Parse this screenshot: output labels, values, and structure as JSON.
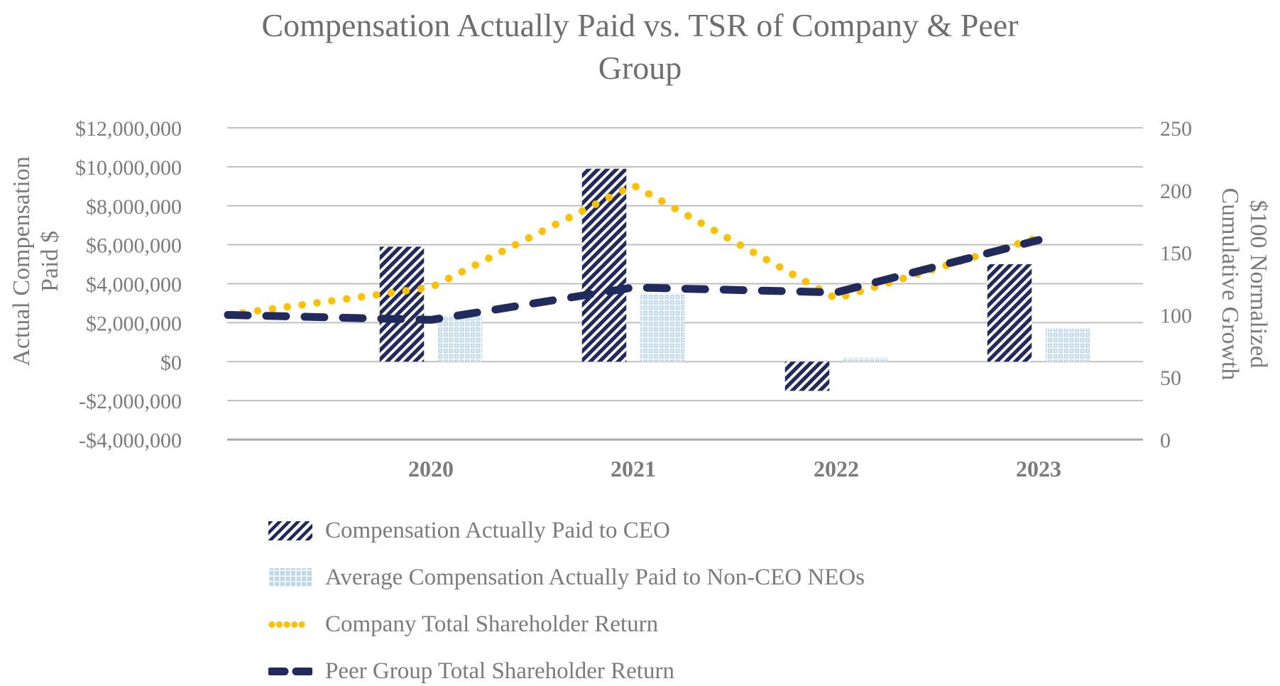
{
  "colors": {
    "navy": "#212A5C",
    "light_blue": "#BDD7EE",
    "gold": "#FFC000",
    "title_gray": "#6E6E6E",
    "text_gray": "#7B7B7B",
    "gridline": "#BFBFBF",
    "bottom_axis_line": "#A8A8A8",
    "background": "#FFFFFF"
  },
  "chart_data": {
    "type": "combo-bar-line",
    "title": "Compensation Actually Paid vs. TSR of Company & Peer Group",
    "title_lines": [
      "Compensation Actually Paid vs. TSR of Company & Peer",
      "Group"
    ],
    "categories": [
      "2020",
      "2021",
      "2022",
      "2023"
    ],
    "grid": "horizontal",
    "legend_position": "bottom-left",
    "left_axis": {
      "title": "Actual Compensation Paid $",
      "title_lines": [
        "Actual Compensation",
        "Paid $"
      ],
      "min": -4000000,
      "max": 12000000,
      "ticks": [
        {
          "label": "$12,000,000",
          "value": 12000000
        },
        {
          "label": "$10,000,000",
          "value": 10000000
        },
        {
          "label": "$8,000,000",
          "value": 8000000
        },
        {
          "label": "$6,000,000",
          "value": 6000000
        },
        {
          "label": "$4,000,000",
          "value": 4000000
        },
        {
          "label": "$2,000,000",
          "value": 2000000
        },
        {
          "label": "$0",
          "value": 0
        },
        {
          "label": "-$2,000,000",
          "value": -2000000
        },
        {
          "label": "-$4,000,000",
          "value": -4000000
        }
      ]
    },
    "right_axis": {
      "title": "$100 Normalized Cumulative Growth",
      "title_lines": [
        "$100 Normalized",
        "Cumulative Growth"
      ],
      "min": 0,
      "max": 250,
      "ticks": [
        {
          "label": "250",
          "value": 250
        },
        {
          "label": "200",
          "value": 200
        },
        {
          "label": "150",
          "value": 150
        },
        {
          "label": "100",
          "value": 100
        },
        {
          "label": "50",
          "value": 50
        },
        {
          "label": "0",
          "value": 0
        }
      ]
    },
    "bar_series": [
      {
        "name": "Compensation Actually Paid to CEO",
        "type": "bar",
        "axis": "left",
        "pattern": "diagonal-hatch",
        "color_key": "navy",
        "values": [
          5900000,
          9900000,
          -1500000,
          5000000
        ]
      },
      {
        "name": "Average Compensation Actually Paid to Non-CEO NEOs",
        "type": "bar",
        "axis": "left",
        "pattern": "dotted-check",
        "color_key": "light_blue",
        "values": [
          2300000,
          3500000,
          200000,
          1700000
        ]
      }
    ],
    "line_series": [
      {
        "name": "Company Total Shareholder Return",
        "type": "line",
        "axis": "right",
        "style": "dotted",
        "color_key": "gold",
        "points": [
          {
            "x": "baseline",
            "value": 100
          },
          {
            "x": "2020",
            "value": 122
          },
          {
            "x": "2021",
            "value": 204
          },
          {
            "x": "2022",
            "value": 113
          },
          {
            "x": "2023",
            "value": 162
          }
        ]
      },
      {
        "name": "Peer Group Total Shareholder Return",
        "type": "line",
        "axis": "right",
        "style": "dashed",
        "color_key": "navy",
        "points": [
          {
            "x": "baseline",
            "value": 100
          },
          {
            "x": "2020",
            "value": 96
          },
          {
            "x": "2021",
            "value": 122
          },
          {
            "x": "2022",
            "value": 118
          },
          {
            "x": "2023",
            "value": 160
          }
        ]
      }
    ]
  }
}
